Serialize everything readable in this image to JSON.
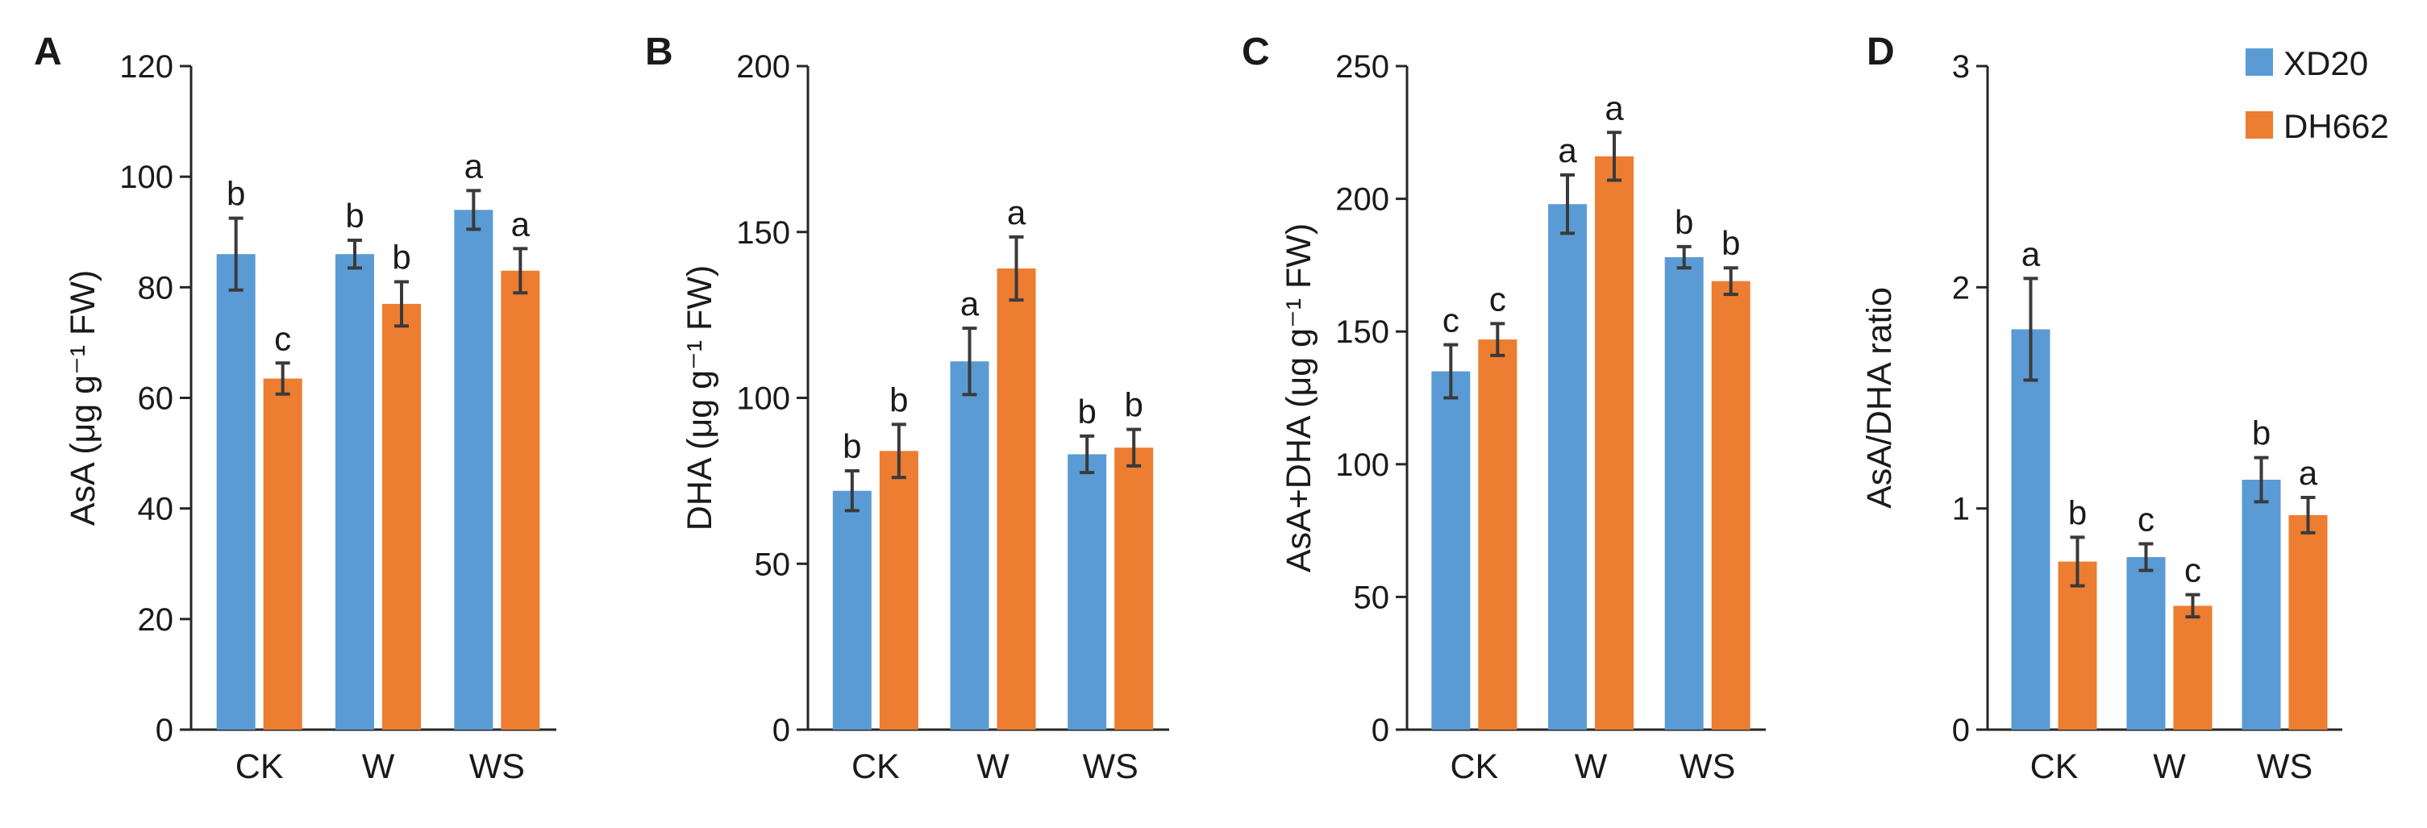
{
  "colors": {
    "XD20": "#5B9BD5",
    "DH662": "#ED7D31",
    "axis": "#262626",
    "error": "#3a3a3a"
  },
  "legend": {
    "items": [
      {
        "name": "XD20"
      },
      {
        "name": "DH662"
      }
    ]
  },
  "chart_data": [
    {
      "type": "bar",
      "panel": "A",
      "categories": [
        "CK",
        "W",
        "WS"
      ],
      "ylabel": "AsA (μg g⁻¹ FW)",
      "ylim": [
        0,
        120
      ],
      "yticks": [
        0,
        20,
        40,
        60,
        80,
        100,
        120
      ],
      "ytick_labels": [
        "0",
        "20",
        "40",
        "60",
        "80",
        "100",
        "120"
      ],
      "series": [
        {
          "name": "XD20",
          "values": [
            86,
            86,
            94
          ],
          "errors": [
            6.5,
            2.5,
            3.5
          ],
          "labels": [
            "b",
            "b",
            "a"
          ]
        },
        {
          "name": "DH662",
          "values": [
            63.5,
            77,
            83
          ],
          "errors": [
            2.8,
            4,
            4
          ],
          "labels": [
            "c",
            "b",
            "a"
          ]
        }
      ]
    },
    {
      "type": "bar",
      "panel": "B",
      "categories": [
        "CK",
        "W",
        "WS"
      ],
      "ylabel": "DHA (μg g⁻¹ FW)",
      "ylim": [
        0,
        200
      ],
      "yticks": [
        0,
        50,
        100,
        150,
        200
      ],
      "ytick_labels": [
        "0",
        "50",
        "100",
        "150",
        "200"
      ],
      "series": [
        {
          "name": "XD20",
          "values": [
            72,
            111,
            83
          ],
          "errors": [
            6,
            10,
            5.5
          ],
          "labels": [
            "b",
            "a",
            "b"
          ]
        },
        {
          "name": "DH662",
          "values": [
            84,
            139,
            85
          ],
          "errors": [
            8,
            9.5,
            5.5
          ],
          "labels": [
            "b",
            "a",
            "b"
          ]
        }
      ]
    },
    {
      "type": "bar",
      "panel": "C",
      "categories": [
        "CK",
        "W",
        "WS"
      ],
      "ylabel": "AsA+DHA (μg g⁻¹ FW)",
      "ylim": [
        0,
        250
      ],
      "yticks": [
        0,
        50,
        100,
        150,
        200,
        250
      ],
      "ytick_labels": [
        "0",
        "50",
        "100",
        "150",
        "200",
        "250"
      ],
      "series": [
        {
          "name": "XD20",
          "values": [
            135,
            198,
            178
          ],
          "errors": [
            10,
            11,
            4
          ],
          "labels": [
            "c",
            "a",
            "b"
          ]
        },
        {
          "name": "DH662",
          "values": [
            147,
            216,
            169
          ],
          "errors": [
            6,
            9,
            5
          ],
          "labels": [
            "c",
            "a",
            "b"
          ]
        }
      ]
    },
    {
      "type": "bar",
      "panel": "D",
      "categories": [
        "CK",
        "W",
        "WS"
      ],
      "ylabel": "AsA/DHA ratio",
      "ylim": [
        0,
        3
      ],
      "yticks": [
        0,
        1,
        2,
        3
      ],
      "ytick_labels": [
        "0",
        "1",
        "2",
        "3"
      ],
      "series": [
        {
          "name": "XD20",
          "values": [
            1.81,
            0.78,
            1.13
          ],
          "errors": [
            0.23,
            0.06,
            0.1
          ],
          "labels": [
            "a",
            "c",
            "b"
          ]
        },
        {
          "name": "DH662",
          "values": [
            0.76,
            0.56,
            0.97
          ],
          "errors": [
            0.11,
            0.05,
            0.08
          ],
          "labels": [
            "b",
            "c",
            "a"
          ]
        }
      ]
    }
  ]
}
